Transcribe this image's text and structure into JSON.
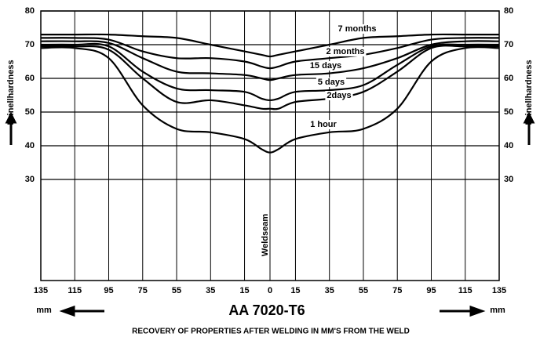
{
  "chart_data": {
    "type": "line",
    "title": "AA  7020-T6",
    "subtitle": "RECOVERY OF PROPERTIES AFTER WELDING IN MM'S FROM THE WELD",
    "y_label": "Brinellhardness",
    "x_unit": "mm",
    "annotation": "Weldseam",
    "x": [
      -135,
      -115,
      -95,
      -75,
      -55,
      -35,
      -15,
      -5,
      0,
      5,
      15,
      35,
      55,
      75,
      95,
      115,
      135
    ],
    "series": [
      {
        "name": "7 months",
        "color": "#000000",
        "values": [
          73,
          73,
          73,
          72.5,
          72,
          70,
          68,
          67,
          66.5,
          67,
          68,
          70,
          72,
          72.5,
          73,
          73,
          73
        ]
      },
      {
        "name": "2 months",
        "color": "#000000",
        "values": [
          72,
          72,
          71.5,
          68,
          66,
          66,
          65,
          63.5,
          63,
          63.5,
          65,
          66,
          67,
          69,
          71.5,
          72,
          72
        ]
      },
      {
        "name": "15 days",
        "color": "#000000",
        "values": [
          71,
          71,
          70.5,
          66,
          62,
          61.5,
          61,
          60,
          59.5,
          60,
          61,
          61.5,
          63,
          66,
          70,
          71,
          71
        ]
      },
      {
        "name": "5 days",
        "color": "#000000",
        "values": [
          70,
          70,
          69.5,
          62,
          57,
          56.5,
          56,
          54,
          53.5,
          54,
          56,
          56.5,
          58,
          64,
          69.5,
          70,
          70
        ]
      },
      {
        "name": "2days",
        "color": "#000000",
        "values": [
          69.5,
          69.5,
          68.5,
          60,
          53,
          53.5,
          52,
          51,
          51,
          51,
          53,
          54,
          56,
          62,
          69,
          69.5,
          69.5
        ]
      },
      {
        "name": "1 hour",
        "color": "#000000",
        "values": [
          69,
          69,
          66,
          52,
          45,
          44,
          42,
          39,
          38,
          39,
          42,
          44,
          45,
          51,
          65,
          69,
          69
        ]
      }
    ],
    "xlim": [
      -135,
      135
    ],
    "xticks": [
      {
        "value": -135,
        "label": "135"
      },
      {
        "value": -115,
        "label": "115"
      },
      {
        "value": -95,
        "label": "95"
      },
      {
        "value": -75,
        "label": "75"
      },
      {
        "value": -55,
        "label": "55"
      },
      {
        "value": -35,
        "label": "35"
      },
      {
        "value": -15,
        "label": "15"
      },
      0,
      15,
      35,
      55,
      75,
      95,
      115,
      135
    ],
    "ylim": [
      0,
      80
    ],
    "yticks": [
      30,
      40,
      50,
      60,
      70,
      80
    ],
    "grid": true
  }
}
